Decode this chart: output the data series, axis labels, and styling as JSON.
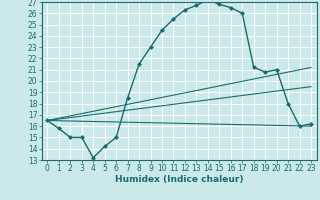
{
  "title": "",
  "xlabel": "Humidex (Indice chaleur)",
  "xlim": [
    -0.5,
    23.5
  ],
  "ylim": [
    13,
    27
  ],
  "xticks": [
    0,
    1,
    2,
    3,
    4,
    5,
    6,
    7,
    8,
    9,
    10,
    11,
    12,
    13,
    14,
    15,
    16,
    17,
    18,
    19,
    20,
    21,
    22,
    23
  ],
  "yticks": [
    13,
    14,
    15,
    16,
    17,
    18,
    19,
    20,
    21,
    22,
    23,
    24,
    25,
    26,
    27
  ],
  "bg_color": "#cce9ea",
  "line_color": "#1a6b6b",
  "grid_color": "#ffffff",
  "lines": [
    {
      "x": [
        0,
        1,
        2,
        3,
        4,
        5,
        6,
        7,
        8,
        9,
        10,
        11,
        12,
        13,
        14,
        15,
        16,
        17,
        18,
        19,
        20,
        21,
        22,
        23
      ],
      "y": [
        16.5,
        15.8,
        15.0,
        15.0,
        13.2,
        14.2,
        15.0,
        18.5,
        21.5,
        23.0,
        24.5,
        25.5,
        26.3,
        26.7,
        27.2,
        26.8,
        26.5,
        26.0,
        21.2,
        20.8,
        21.0,
        18.0,
        16.0,
        16.2
      ],
      "marker": "D",
      "markersize": 2,
      "linewidth": 1.0
    },
    {
      "x": [
        0,
        23
      ],
      "y": [
        16.5,
        21.2
      ],
      "marker": null,
      "linewidth": 0.8
    },
    {
      "x": [
        0,
        23
      ],
      "y": [
        16.5,
        19.5
      ],
      "marker": null,
      "linewidth": 0.8
    },
    {
      "x": [
        0,
        23
      ],
      "y": [
        16.5,
        16.0
      ],
      "marker": null,
      "linewidth": 0.8
    }
  ],
  "tick_labelsize": 5.5,
  "xlabel_fontsize": 6.5,
  "xlabel_fontweight": "bold"
}
